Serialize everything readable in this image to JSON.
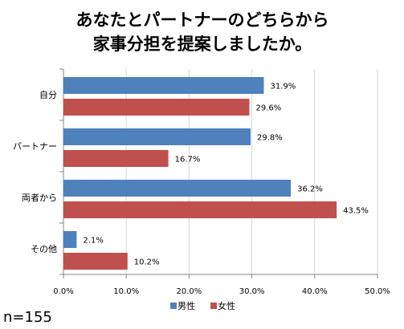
{
  "chart_data": {
    "type": "bar",
    "orientation": "horizontal",
    "title_lines": [
      "あなたとパートナーのどちらから",
      "家事分担を提案しましたか。"
    ],
    "categories": [
      "自分",
      "パートナー",
      "両者から",
      "その他"
    ],
    "series": [
      {
        "name": "男性",
        "color": "#4f81bd",
        "values": [
          31.9,
          29.8,
          36.2,
          2.1
        ],
        "labels": [
          "31.9%",
          "29.8%",
          "36.2%",
          "2.1%"
        ]
      },
      {
        "name": "女性",
        "color": "#c0504d",
        "values": [
          29.6,
          16.7,
          43.5,
          10.2
        ],
        "labels": [
          "29.6%",
          "16.7%",
          "43.5%",
          "10.2%"
        ]
      }
    ],
    "xlim": [
      0,
      50
    ],
    "xticks": [
      0,
      10,
      20,
      30,
      40,
      50
    ],
    "xtick_labels": [
      "0.0%",
      "10.0%",
      "20.0%",
      "30.0%",
      "40.0%",
      "50.0%"
    ],
    "grid": true,
    "gridline_color": "#d9d9d9",
    "axis_color": "#868686",
    "legend_position": "bottom"
  },
  "note": "n=155"
}
